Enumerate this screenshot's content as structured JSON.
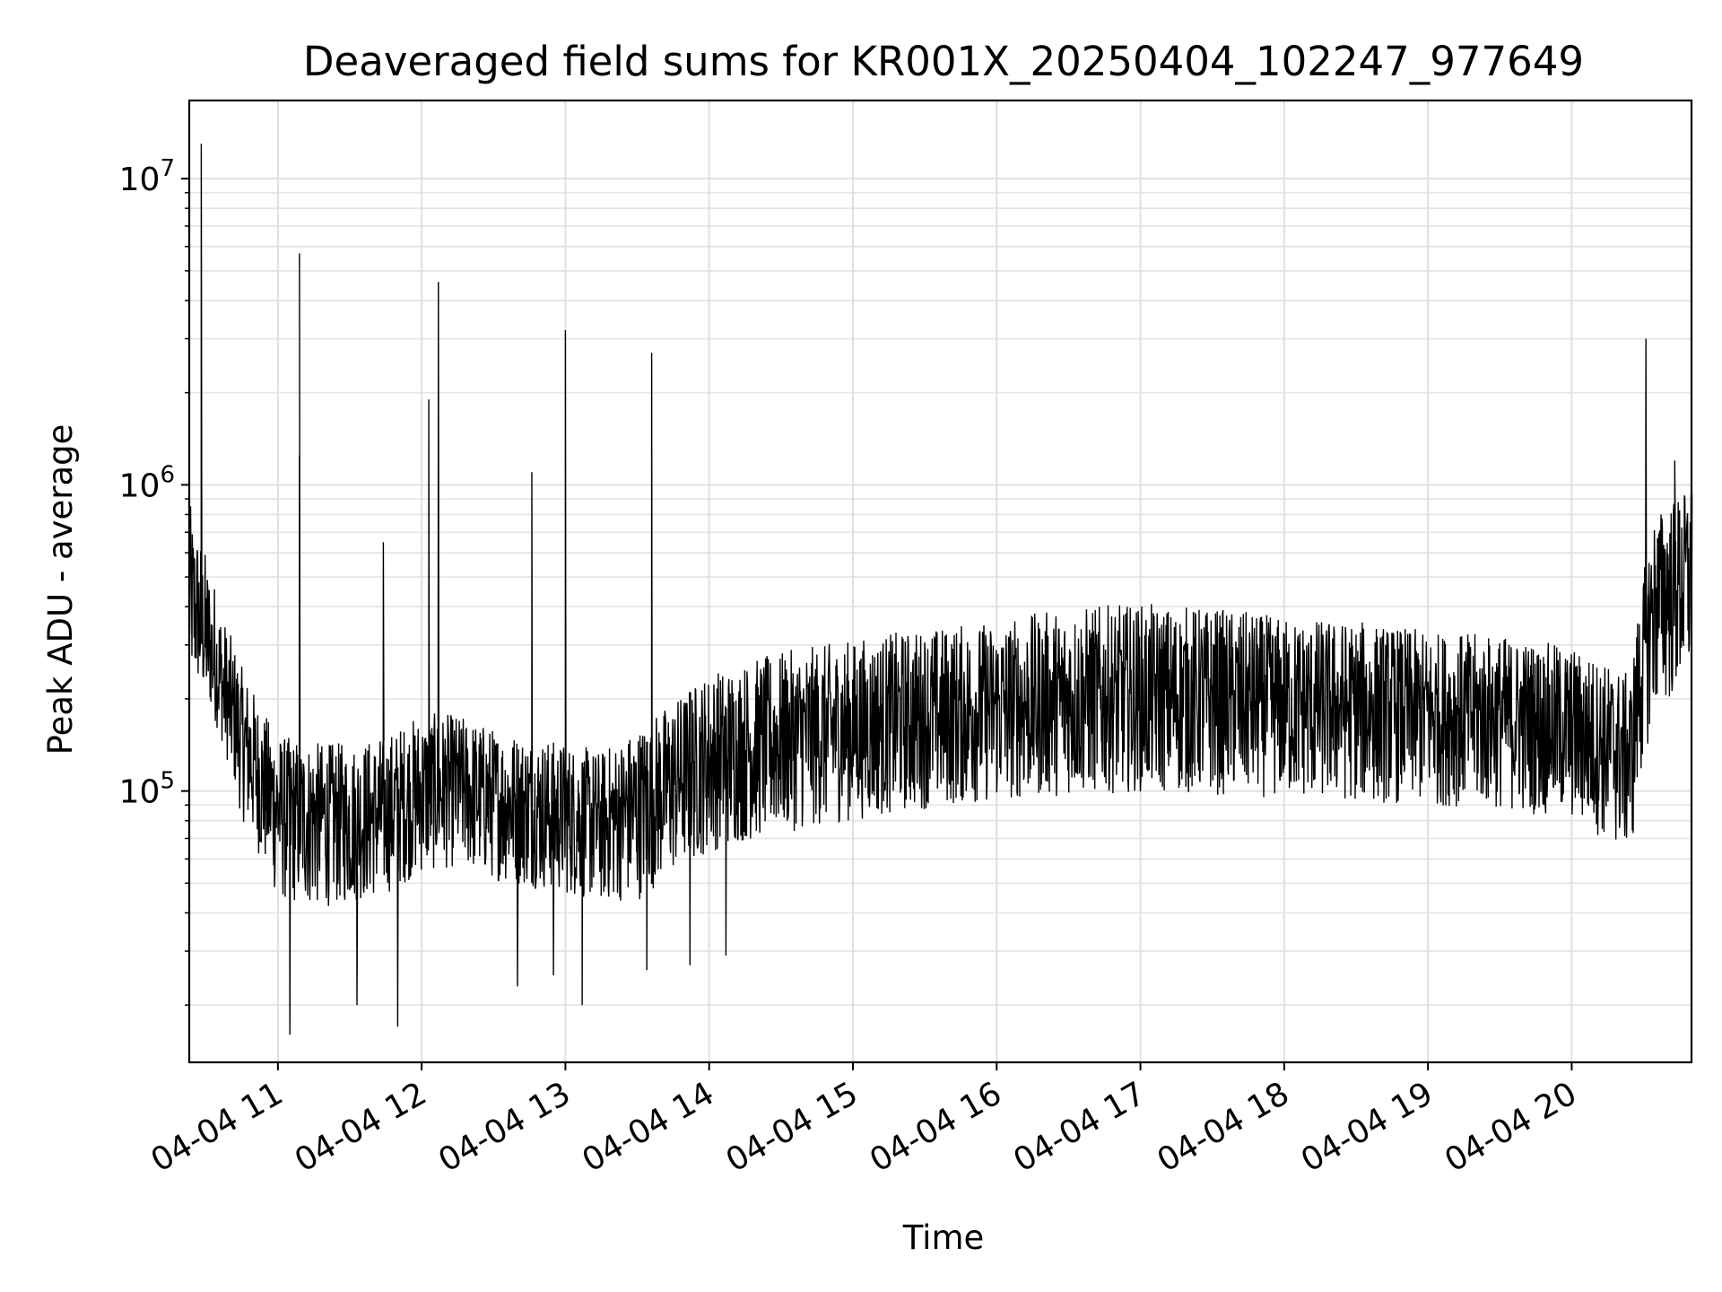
{
  "chart_data": {
    "type": "line",
    "title": "Deaveraged field sums for KR001X_20250404_102247_977649",
    "xlabel": "Time",
    "ylabel": "Peak ADU - average",
    "xscale": "time",
    "yscale": "log",
    "xlim": [
      "2025-04-04 10:23",
      "2025-04-04 20:50"
    ],
    "ylim": [
      13000,
      18000000
    ],
    "grid": "major and minor",
    "x_tick_labels": [
      "04-04 11",
      "04-04 12",
      "04-04 13",
      "04-04 14",
      "04-04 15",
      "04-04 16",
      "04-04 17",
      "04-04 18",
      "04-04 19",
      "04-04 20"
    ],
    "x_tick_times": [
      "2025-04-04 11:00",
      "2025-04-04 12:00",
      "2025-04-04 13:00",
      "2025-04-04 14:00",
      "2025-04-04 15:00",
      "2025-04-04 16:00",
      "2025-04-04 17:00",
      "2025-04-04 18:00",
      "2025-04-04 19:00",
      "2025-04-04 20:00"
    ],
    "y_ticks": [
      {
        "value": 100000,
        "base": "10",
        "exp": "5"
      },
      {
        "value": 1000000,
        "base": "10",
        "exp": "6"
      },
      {
        "value": 10000000,
        "base": "10",
        "exp": "7"
      }
    ],
    "color": "#000000",
    "series": [
      {
        "x": [
          "2025-04-04 10:23",
          "2025-04-04 10:30",
          "2025-04-04 10:38",
          "2025-04-04 10:45",
          "2025-04-04 10:53",
          "2025-04-04 11:00",
          "2025-04-04 11:15",
          "2025-04-04 11:30",
          "2025-04-04 11:45",
          "2025-04-04 12:00",
          "2025-04-04 12:15",
          "2025-04-04 12:30",
          "2025-04-04 12:45",
          "2025-04-04 13:00",
          "2025-04-04 13:15",
          "2025-04-04 13:30",
          "2025-04-04 13:45",
          "2025-04-04 14:00",
          "2025-04-04 14:30",
          "2025-04-04 15:00",
          "2025-04-04 15:30",
          "2025-04-04 16:00",
          "2025-04-04 16:30",
          "2025-04-04 17:00",
          "2025-04-04 17:30",
          "2025-04-04 18:00",
          "2025-04-04 18:30",
          "2025-04-04 19:00",
          "2025-04-04 19:30",
          "2025-04-04 20:00",
          "2025-04-04 20:25",
          "2025-04-04 20:35",
          "2025-04-04 20:50"
        ],
        "y": [
          400000,
          300000,
          200000,
          150000,
          110000,
          90000,
          85000,
          80000,
          85000,
          100000,
          105000,
          95000,
          90000,
          85000,
          80000,
          90000,
          110000,
          130000,
          150000,
          165000,
          180000,
          190000,
          200000,
          205000,
          200000,
          195000,
          190000,
          185000,
          180000,
          165000,
          140000,
          450000,
          550000
        ],
        "noise_lo": [
          0.25,
          0.2,
          0.2,
          0.3,
          0.3,
          0.35,
          0.35,
          0.3,
          0.3,
          0.3,
          0.3,
          0.3,
          0.3,
          0.3,
          0.3,
          0.35,
          0.35,
          0.35,
          0.35,
          0.35,
          0.35,
          0.35,
          0.35,
          0.35,
          0.35,
          0.35,
          0.35,
          0.35,
          0.35,
          0.35,
          0.4,
          0.45,
          0.45
        ],
        "noise_hi": [
          2.2,
          2.0,
          1.8,
          1.7,
          1.7,
          1.7,
          1.7,
          1.8,
          1.8,
          1.8,
          1.7,
          1.7,
          1.7,
          1.7,
          1.7,
          1.8,
          1.8,
          1.9,
          1.9,
          1.9,
          1.9,
          1.9,
          2.0,
          2.0,
          2.0,
          1.9,
          1.9,
          1.8,
          1.8,
          1.8,
          1.7,
          1.8,
          1.8
        ],
        "spikes": [
          {
            "x": "2025-04-04 10:28",
            "y": 13000000
          },
          {
            "x": "2025-04-04 11:09",
            "y": 5700000
          },
          {
            "x": "2025-04-04 11:09",
            "y": 1250000
          },
          {
            "x": "2025-04-04 11:44",
            "y": 530000
          },
          {
            "x": "2025-04-04 11:44",
            "y": 650000
          },
          {
            "x": "2025-04-04 12:03",
            "y": 1900000
          },
          {
            "x": "2025-04-04 12:07",
            "y": 4600000
          },
          {
            "x": "2025-04-04 12:46",
            "y": 1100000
          },
          {
            "x": "2025-04-04 13:00",
            "y": 3200000
          },
          {
            "x": "2025-04-04 13:36",
            "y": 2700000
          },
          {
            "x": "2025-04-04 20:31",
            "y": 3000000
          },
          {
            "x": "2025-04-04 20:43",
            "y": 1200000
          },
          {
            "x": "2025-04-04 20:50",
            "y": 1000000
          }
        ],
        "dips": [
          {
            "x": "2025-04-04 11:05",
            "y": 16000
          },
          {
            "x": "2025-04-04 11:33",
            "y": 20000
          },
          {
            "x": "2025-04-04 11:50",
            "y": 17000
          },
          {
            "x": "2025-04-04 12:40",
            "y": 23000
          },
          {
            "x": "2025-04-04 12:55",
            "y": 25000
          },
          {
            "x": "2025-04-04 13:07",
            "y": 20000
          },
          {
            "x": "2025-04-04 13:34",
            "y": 26000
          },
          {
            "x": "2025-04-04 13:52",
            "y": 27000
          },
          {
            "x": "2025-04-04 14:07",
            "y": 29000
          }
        ]
      }
    ]
  }
}
